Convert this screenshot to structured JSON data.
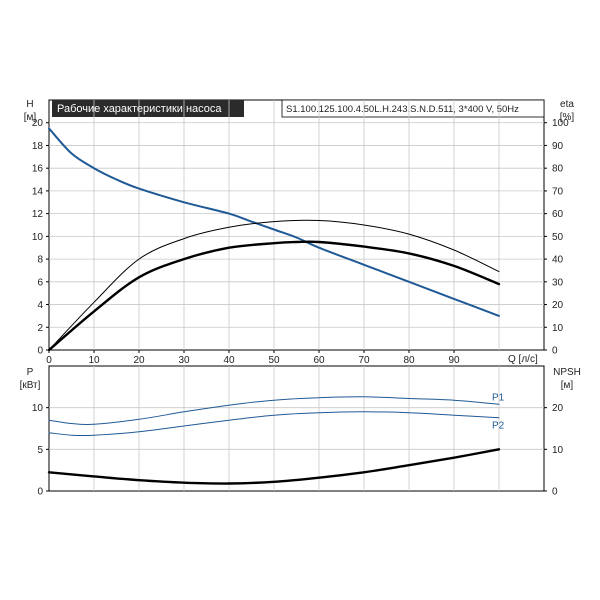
{
  "chart_data": [
    {
      "type": "line",
      "title": "Рабочие характеристики насоса",
      "subtitle": "S1.100.125.100.4.50L.H.243.S.N.D.511, 3*400 V, 50Hz",
      "xlabel": "Q [л/с]",
      "ylabel_left": {
        "name": "H",
        "unit": "[м]"
      },
      "ylabel_right": {
        "name": "eta",
        "unit": "[%]"
      },
      "xlim": [
        0,
        100
      ],
      "ylim_left": [
        0,
        22
      ],
      "ylim_right": [
        0,
        110
      ],
      "x_ticks": [
        0,
        10,
        20,
        30,
        40,
        50,
        60,
        70,
        80,
        90
      ],
      "y_ticks_left": [
        0,
        2,
        4,
        6,
        8,
        10,
        12,
        14,
        16,
        18,
        20
      ],
      "y_ticks_right": [
        0,
        10,
        20,
        30,
        40,
        50,
        60,
        70,
        80,
        90,
        100
      ],
      "grid": true,
      "series": [
        {
          "axis": "left",
          "color": "#1f5a96",
          "x": [
            0,
            5,
            10,
            15,
            20,
            30,
            40,
            45,
            50,
            55,
            60,
            70,
            80,
            90,
            100
          ],
          "values": [
            19.5,
            17.3,
            16.0,
            15.0,
            14.2,
            13.0,
            12.0,
            11.3,
            10.6,
            9.9,
            9.0,
            7.5,
            6.0,
            4.5,
            3.0
          ]
        },
        {
          "axis": "right",
          "color": "#000000",
          "x": [
            0,
            10,
            20,
            30,
            40,
            50,
            55,
            60,
            70,
            80,
            90,
            100
          ],
          "values": [
            0,
            17,
            32,
            40,
            45,
            47,
            47.5,
            47.5,
            45.5,
            42.5,
            37,
            29
          ]
        },
        {
          "axis": "right",
          "color": "#000000",
          "x": [
            0,
            10,
            20,
            30,
            40,
            50,
            60,
            70,
            80,
            90,
            100
          ],
          "values": [
            0,
            21,
            40,
            49,
            54,
            56.5,
            57,
            55,
            51,
            44,
            34.5
          ]
        }
      ]
    },
    {
      "type": "line",
      "xlim": [
        0,
        100
      ],
      "ylabel_left": {
        "name": "P",
        "unit": "[кВт]"
      },
      "ylabel_right": {
        "name": "NPSH",
        "unit": "[м]"
      },
      "ylim_left": [
        0,
        15
      ],
      "ylim_right": [
        0,
        30
      ],
      "y_ticks_left": [
        0,
        5,
        10
      ],
      "y_ticks_right": [
        0,
        10,
        20
      ],
      "grid": true,
      "series": [
        {
          "name": "P1",
          "axis": "left",
          "color": "#1f5a96",
          "x": [
            0,
            5,
            10,
            20,
            30,
            40,
            50,
            60,
            70,
            80,
            90,
            100
          ],
          "values": [
            8.5,
            8.1,
            8.0,
            8.6,
            9.5,
            10.3,
            10.9,
            11.2,
            11.3,
            11.1,
            10.9,
            10.4
          ]
        },
        {
          "name": "P2",
          "axis": "left",
          "color": "#1f5a96",
          "x": [
            0,
            5,
            10,
            20,
            30,
            40,
            50,
            60,
            70,
            80,
            90,
            100
          ],
          "values": [
            7.0,
            6.7,
            6.7,
            7.1,
            7.8,
            8.5,
            9.1,
            9.4,
            9.5,
            9.4,
            9.1,
            8.8
          ]
        },
        {
          "axis": "right",
          "color": "#000000",
          "x": [
            0,
            10,
            20,
            30,
            40,
            50,
            60,
            70,
            80,
            90,
            100
          ],
          "values": [
            4.5,
            3.5,
            2.6,
            2.0,
            1.8,
            2.2,
            3.2,
            4.5,
            6.2,
            8.0,
            10.0
          ]
        }
      ]
    }
  ]
}
